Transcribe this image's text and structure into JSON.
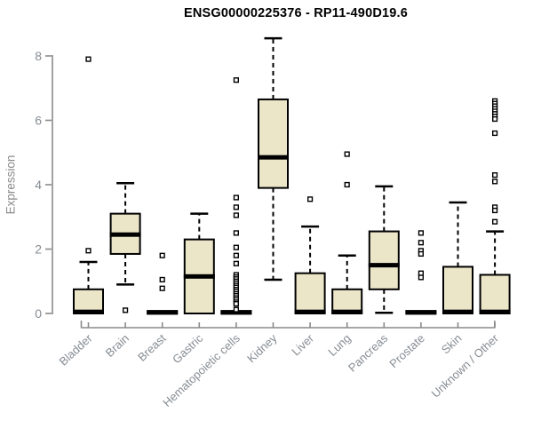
{
  "page": {
    "title": "ENSG00000225376 - RP11-490D19.6"
  },
  "chart_data": {
    "type": "boxplot",
    "title": "ENSG00000225376 - RP11-490D19.6",
    "xlabel": "",
    "ylabel": "Expression",
    "ylim": [
      0,
      8.6
    ],
    "yticks": [
      0,
      2,
      4,
      6,
      8
    ],
    "grid": false,
    "legend": "none",
    "categories": [
      "Bladder",
      "Brain",
      "Breast",
      "Gastric",
      "Hematopoietic cells",
      "Kidney",
      "Liver",
      "Lung",
      "Pancreas",
      "Prostate",
      "Skin",
      "Unknown / Other"
    ],
    "series": [
      {
        "category": "Bladder",
        "whisker_low": 0,
        "q1": 0,
        "median": 0.05,
        "q3": 0.75,
        "whisker_high": 1.6,
        "outliers": [
          7.9,
          1.95
        ]
      },
      {
        "category": "Brain",
        "whisker_low": 0.9,
        "q1": 1.85,
        "median": 2.45,
        "q3": 3.1,
        "whisker_high": 4.05,
        "outliers": [
          0.1
        ]
      },
      {
        "category": "Breast",
        "whisker_low": 0,
        "q1": 0,
        "median": 0.03,
        "q3": 0.08,
        "whisker_high": 0.08,
        "outliers": [
          1.8,
          1.05,
          0.78
        ]
      },
      {
        "category": "Gastric",
        "whisker_low": 0,
        "q1": 0,
        "median": 1.15,
        "q3": 2.3,
        "whisker_high": 3.1,
        "outliers": []
      },
      {
        "category": "Hematopoietic cells",
        "whisker_low": 0,
        "q1": 0,
        "median": 0.03,
        "q3": 0.08,
        "whisker_high": 0.08,
        "outliers": [
          7.25,
          3.6,
          3.3,
          3.05,
          2.5,
          2.05,
          1.8,
          1.55,
          1.2,
          1.13,
          1.07,
          1.0,
          0.94,
          0.87,
          0.81,
          0.74,
          0.68,
          0.61,
          0.55,
          0.48,
          0.42,
          0.35,
          0.3,
          0.12
        ]
      },
      {
        "category": "Kidney",
        "whisker_low": 1.05,
        "q1": 3.9,
        "median": 4.85,
        "q3": 6.65,
        "whisker_high": 8.55,
        "outliers": []
      },
      {
        "category": "Liver",
        "whisker_low": 0,
        "q1": 0,
        "median": 0.05,
        "q3": 1.25,
        "whisker_high": 2.7,
        "outliers": [
          3.55
        ]
      },
      {
        "category": "Lung",
        "whisker_low": 0,
        "q1": 0,
        "median": 0.05,
        "q3": 0.75,
        "whisker_high": 1.8,
        "outliers": [
          4.95,
          4.0
        ]
      },
      {
        "category": "Pancreas",
        "whisker_low": 0.02,
        "q1": 0.75,
        "median": 1.5,
        "q3": 2.55,
        "whisker_high": 3.95,
        "outliers": []
      },
      {
        "category": "Prostate",
        "whisker_low": 0,
        "q1": 0,
        "median": 0.03,
        "q3": 0.08,
        "whisker_high": 0.08,
        "outliers": [
          2.5,
          2.2,
          1.95,
          1.85,
          1.25,
          1.12
        ]
      },
      {
        "category": "Skin",
        "whisker_low": 0,
        "q1": 0,
        "median": 0.05,
        "q3": 1.45,
        "whisker_high": 3.45,
        "outliers": []
      },
      {
        "category": "Unknown / Other",
        "whisker_low": 0,
        "q1": 0,
        "median": 0.05,
        "q3": 1.2,
        "whisker_high": 2.55,
        "outliers": [
          6.6,
          6.52,
          6.44,
          6.36,
          6.28,
          6.2,
          6.12,
          6.04,
          5.6,
          4.3,
          4.1,
          3.3,
          3.2,
          2.85
        ]
      }
    ],
    "colors": {
      "box_fill": "#ECE6C9",
      "box_stroke": "#000000",
      "median": "#000000",
      "outlier_stroke": "#000000",
      "axis": "#8A8A8A",
      "axis_text": "#878D93",
      "title_text": "#000000",
      "background": "#FFFFFF"
    }
  }
}
